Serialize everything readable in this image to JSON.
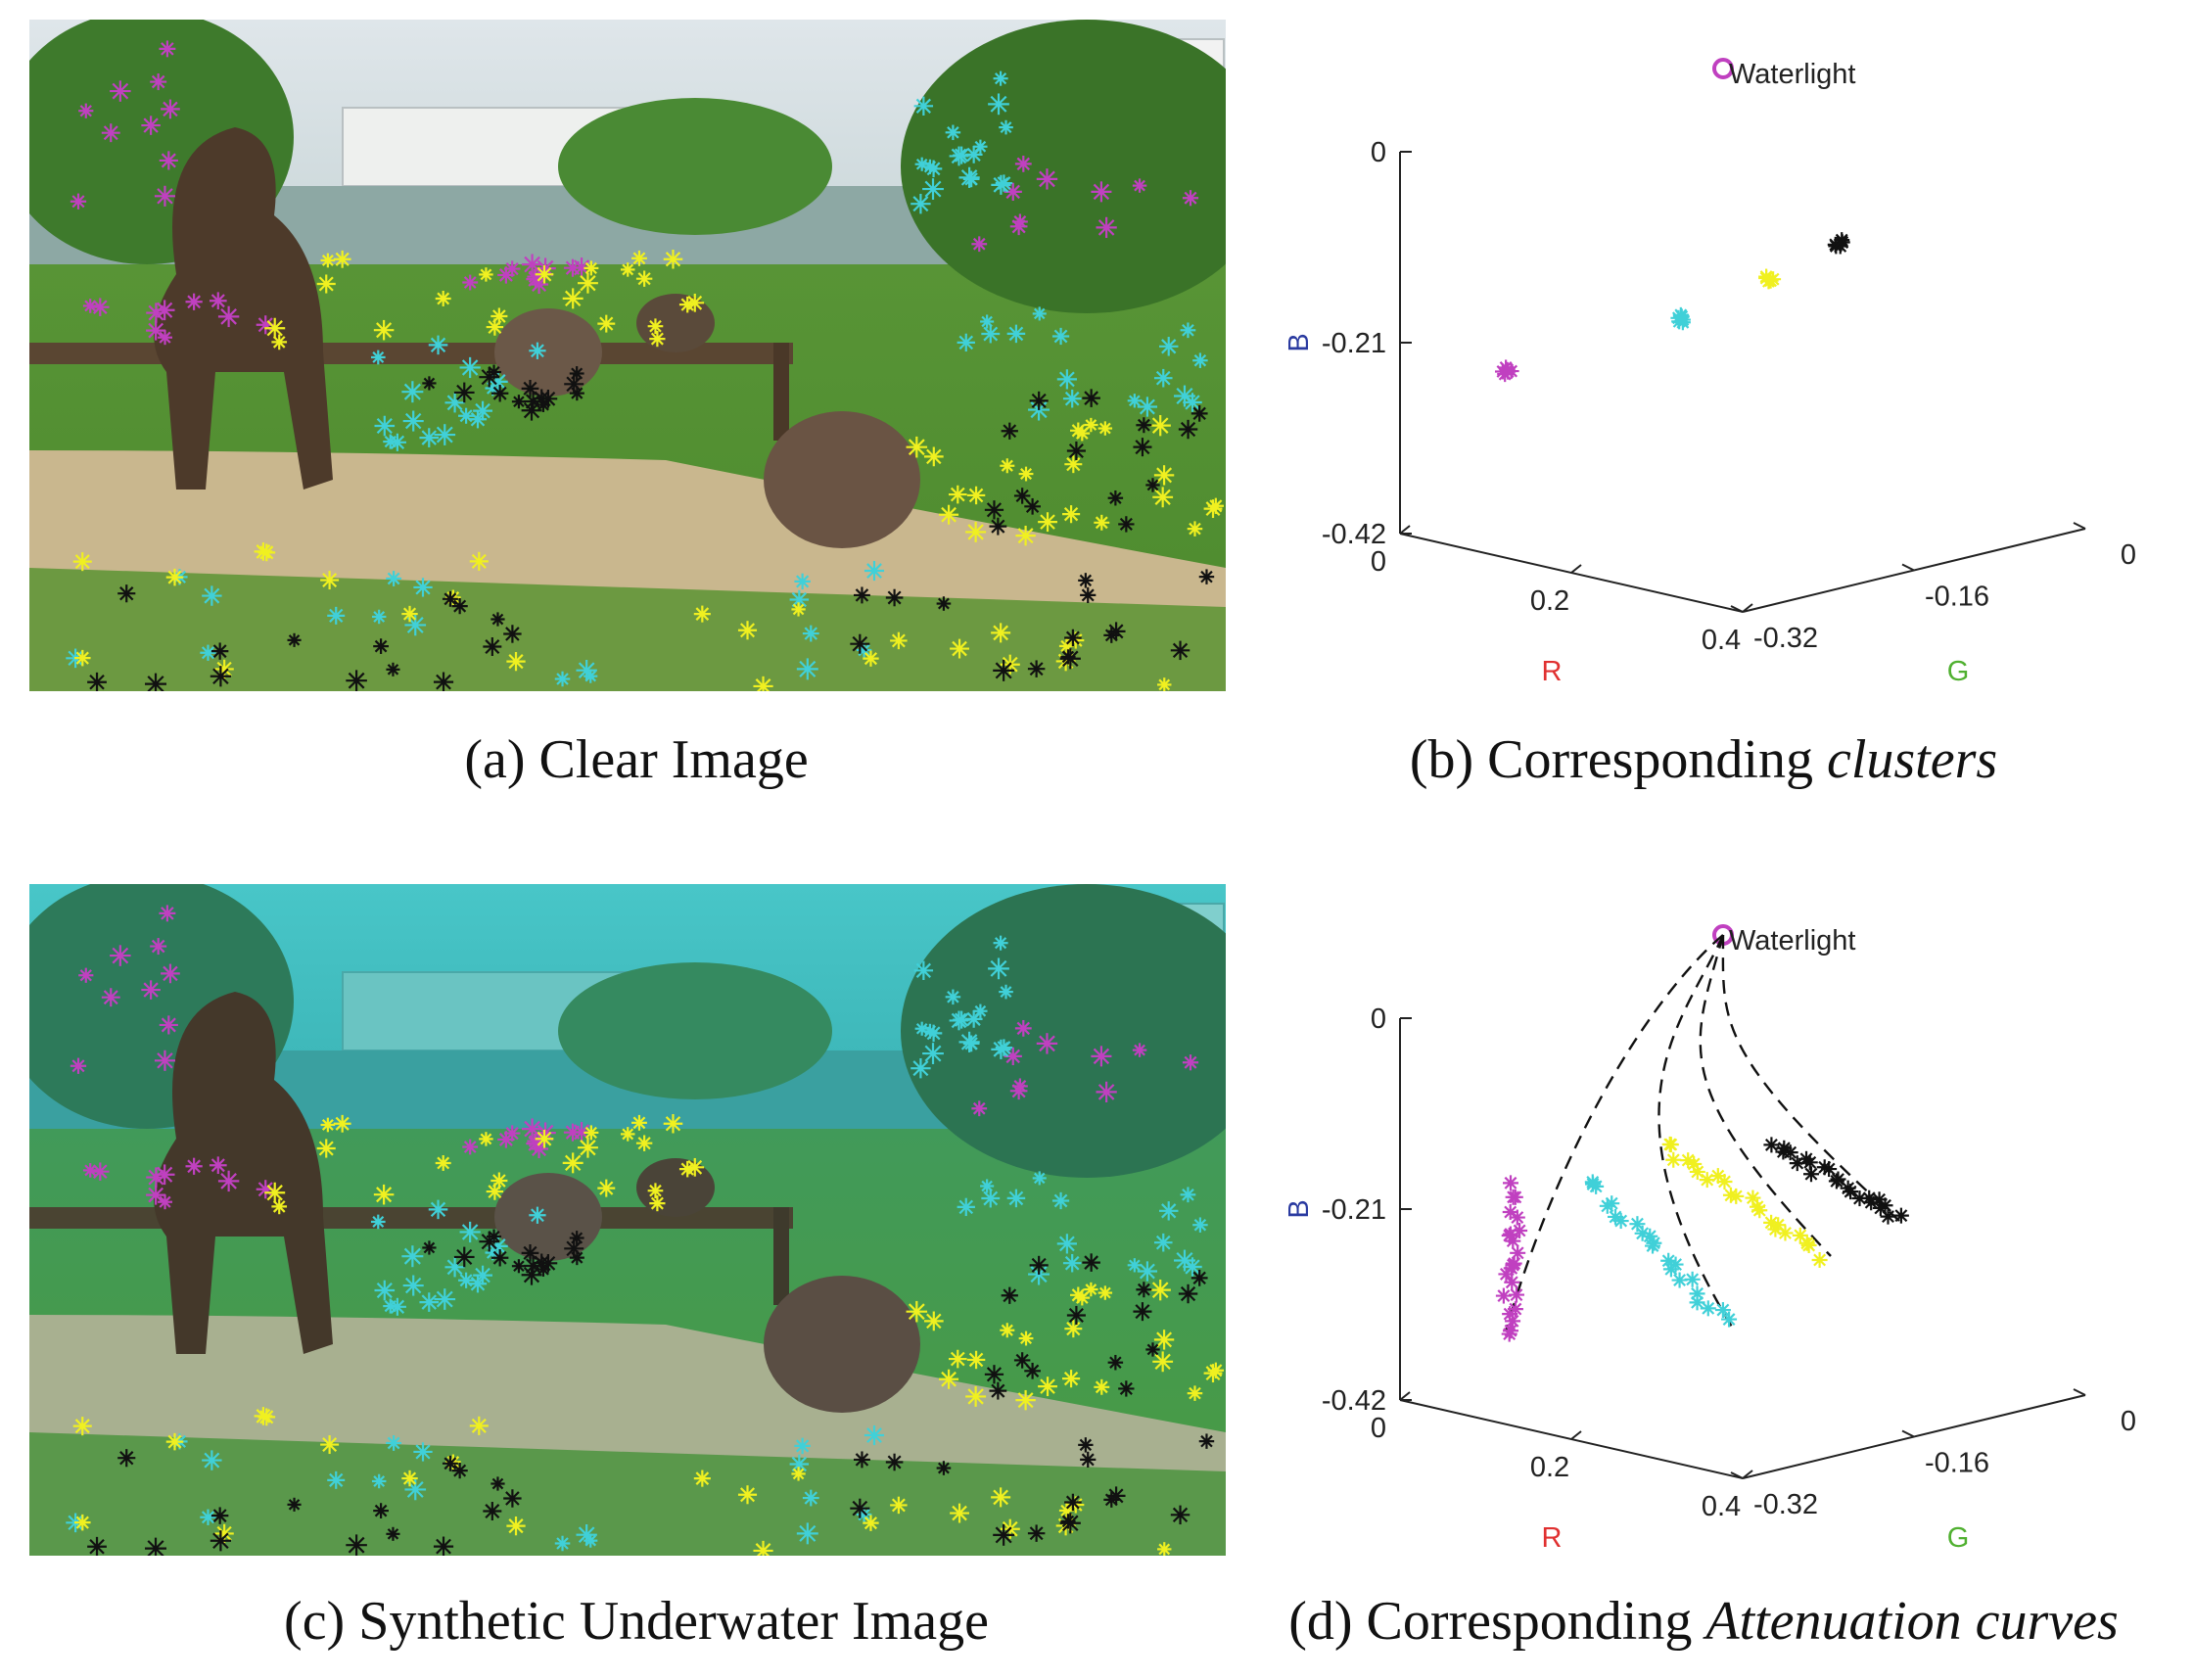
{
  "panels": {
    "a": {
      "label": "(a) Clear Image"
    },
    "b": {
      "label_prefix": "(b)  Corresponding ",
      "label_italic": "clusters"
    },
    "c": {
      "label": "(c) Synthetic Underwater Image"
    },
    "d": {
      "label_prefix": "(d)  Corresponding ",
      "label_italic": "Attenuation curves"
    }
  },
  "colors": {
    "magenta": "#c040c0",
    "cyan": "#40d0d8",
    "yellow": "#f0f020",
    "black": "#111111",
    "axis_R": "#e03030",
    "axis_G": "#50b030",
    "axis_B": "#2a3aa0"
  },
  "chart_data": [
    {
      "type": "scatter",
      "projection": "3d",
      "panel": "b",
      "annotation": "Waterlight",
      "axes": {
        "R": {
          "label": "R",
          "ticks": [
            "0",
            "0.2",
            "0.4"
          ],
          "range": [
            0,
            0.4
          ]
        },
        "G": {
          "label": "G",
          "ticks": [
            "-0.32",
            "-0.16",
            "0"
          ],
          "range": [
            -0.32,
            0
          ]
        },
        "B": {
          "label": "B",
          "ticks": [
            "-0.42",
            "-0.21",
            "0"
          ],
          "range": [
            -0.42,
            0
          ]
        }
      },
      "clusters": [
        {
          "color": "magenta",
          "marker": "*"
        },
        {
          "color": "cyan",
          "marker": "*"
        },
        {
          "color": "yellow",
          "marker": "*"
        },
        {
          "color": "black",
          "marker": "*"
        }
      ],
      "grid": false
    },
    {
      "type": "line",
      "projection": "3d",
      "panel": "d",
      "annotation": "Waterlight",
      "axes": {
        "R": {
          "label": "R",
          "ticks": [
            "0",
            "0.2",
            "0.4"
          ],
          "range": [
            0,
            0.4
          ]
        },
        "G": {
          "label": "G",
          "ticks": [
            "-0.32",
            "-0.16",
            "0"
          ],
          "range": [
            -0.32,
            0
          ]
        },
        "B": {
          "label": "B",
          "ticks": [
            "-0.42",
            "-0.21",
            "0"
          ],
          "range": [
            -0.42,
            0
          ]
        }
      },
      "curves": [
        {
          "color": "magenta",
          "style": "dashed"
        },
        {
          "color": "cyan",
          "style": "dashed"
        },
        {
          "color": "yellow",
          "style": "dashed"
        },
        {
          "color": "black",
          "style": "dashed"
        }
      ],
      "grid": false
    }
  ]
}
